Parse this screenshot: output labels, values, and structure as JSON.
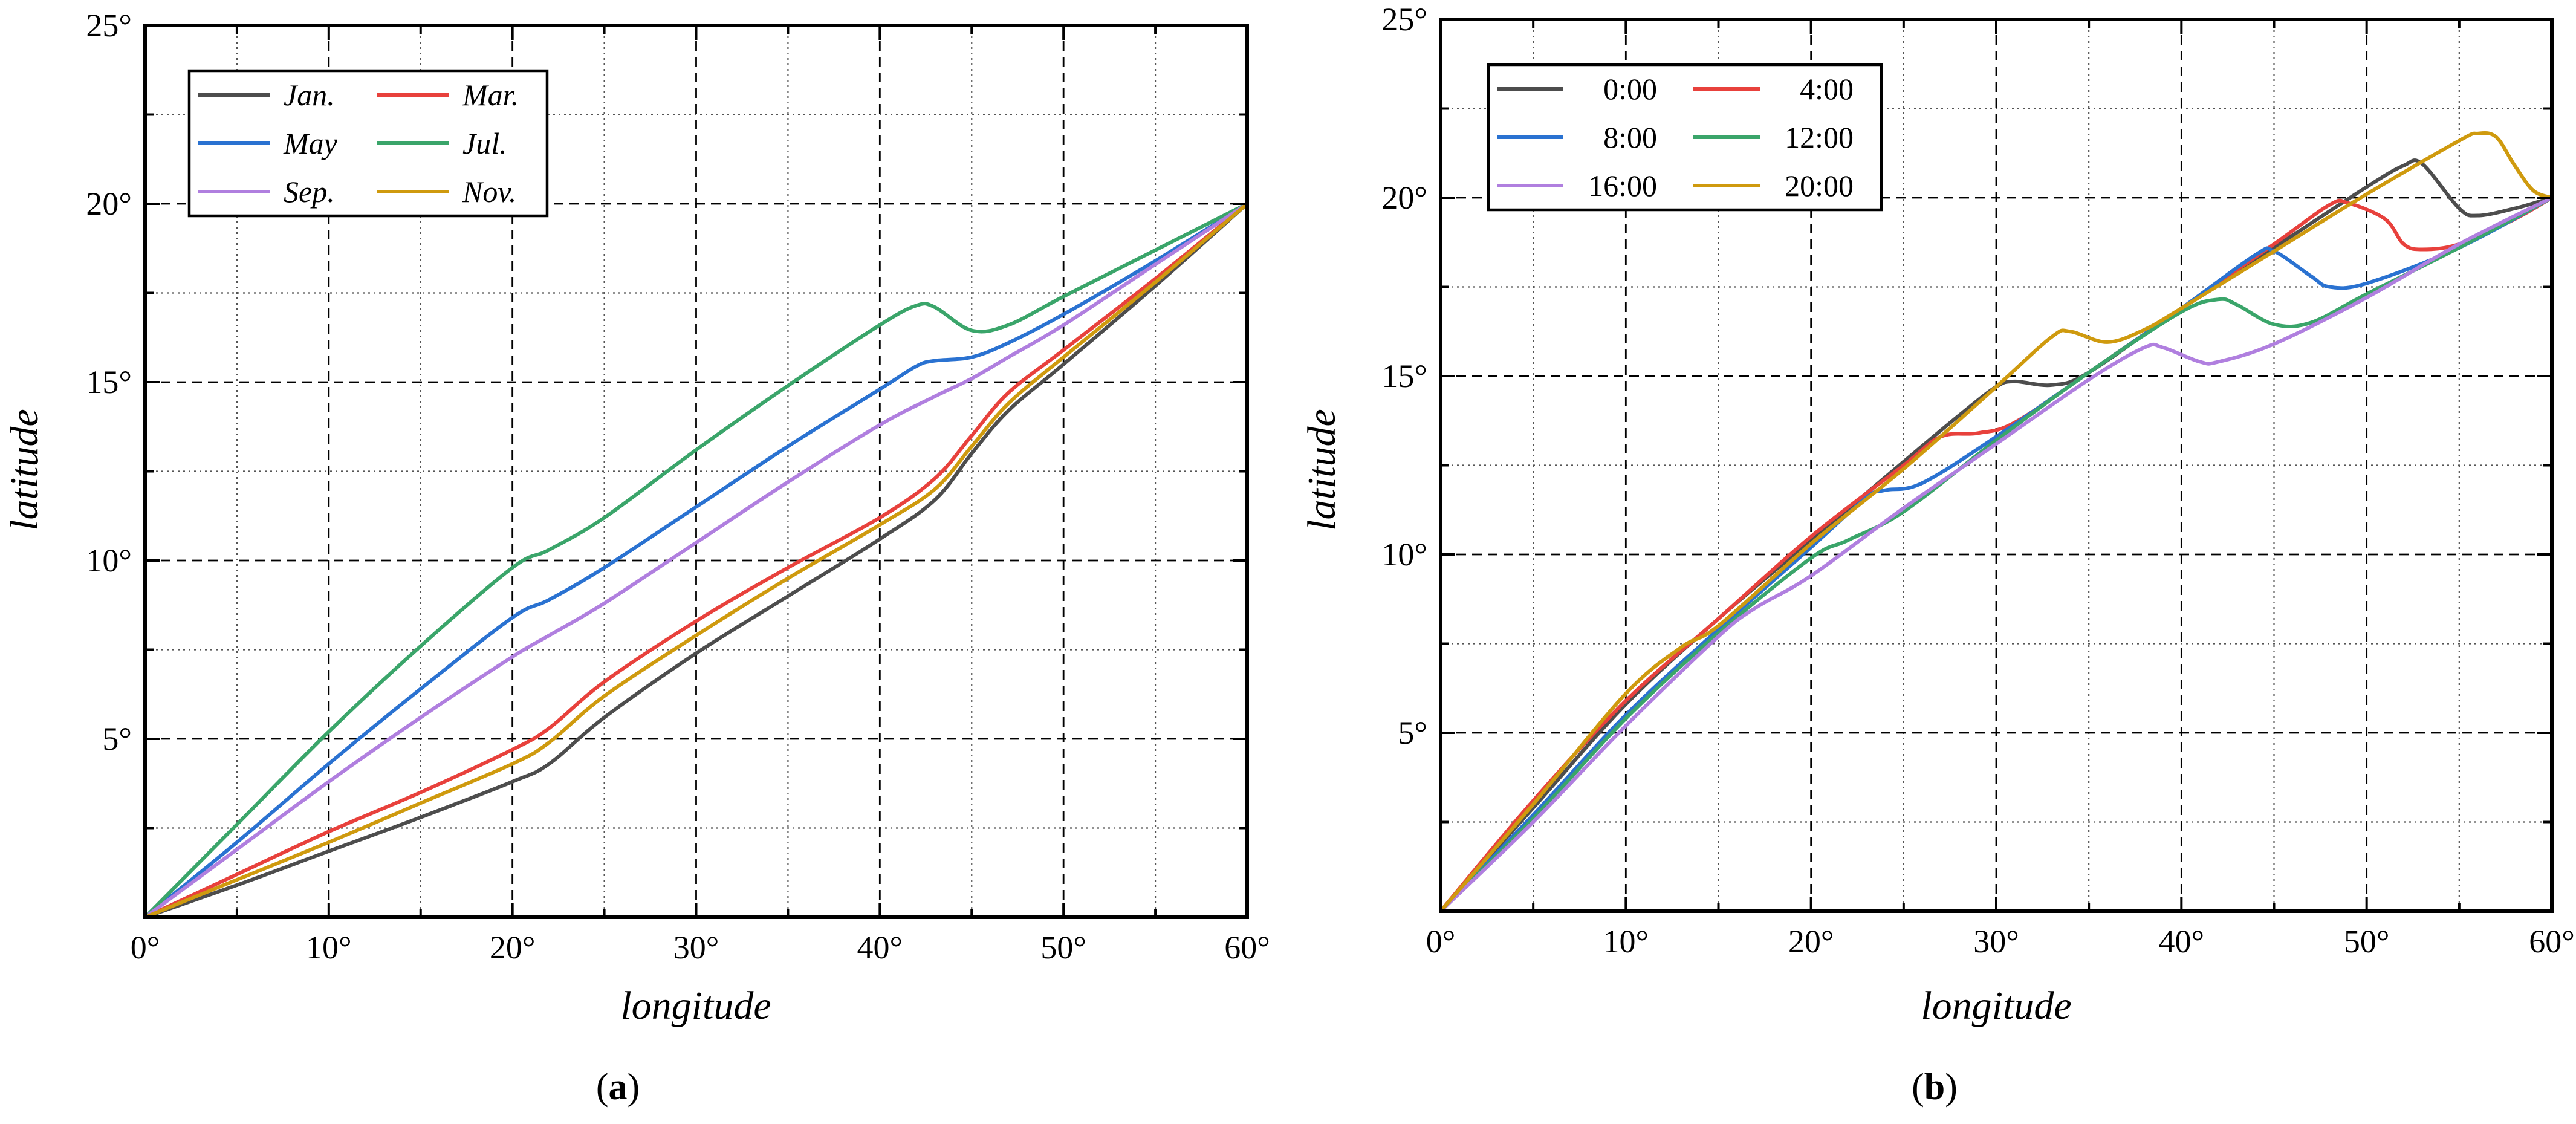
{
  "captions": {
    "a_open": "(",
    "a_letter": "a",
    "a_close": ")",
    "b_open": "(",
    "b_letter": "b",
    "b_close": ")"
  },
  "chart_data": [
    {
      "id": "a",
      "type": "line",
      "xlabel": "longitude",
      "ylabel": "latitude",
      "xlim": [
        0,
        60
      ],
      "ylim": [
        0,
        25
      ],
      "x_major_ticks": [
        0,
        10,
        20,
        30,
        40,
        50,
        60
      ],
      "y_major_ticks": [
        0,
        5,
        10,
        15,
        20,
        25
      ],
      "x_tick_labels": [
        "0°",
        "10°",
        "20°",
        "30°",
        "40°",
        "50°",
        "60°"
      ],
      "y_tick_labels": [
        "",
        "5°",
        "10°",
        "15°",
        "20°",
        "25°"
      ],
      "grid": true,
      "legend_position": "top-left",
      "legend_italic": true,
      "series": [
        {
          "name": "Jan.",
          "color": "#4d4d4d",
          "points": [
            [
              0,
              0
            ],
            [
              5,
              0.9
            ],
            [
              10,
              1.85
            ],
            [
              15,
              2.8
            ],
            [
              20,
              3.8
            ],
            [
              22,
              4.3
            ],
            [
              25,
              5.6
            ],
            [
              30,
              7.4
            ],
            [
              35,
              9.0
            ],
            [
              40,
              10.6
            ],
            [
              43,
              11.7
            ],
            [
              45,
              13.0
            ],
            [
              47,
              14.2
            ],
            [
              50,
              15.5
            ],
            [
              55,
              17.7
            ],
            [
              60,
              20
            ]
          ]
        },
        {
          "name": "Mar.",
          "color": "#e8413c",
          "points": [
            [
              0,
              0
            ],
            [
              5,
              1.2
            ],
            [
              10,
              2.4
            ],
            [
              15,
              3.5
            ],
            [
              20,
              4.7
            ],
            [
              22,
              5.3
            ],
            [
              25,
              6.6
            ],
            [
              30,
              8.3
            ],
            [
              35,
              9.8
            ],
            [
              40,
              11.2
            ],
            [
              43,
              12.3
            ],
            [
              45,
              13.5
            ],
            [
              47,
              14.7
            ],
            [
              50,
              15.9
            ],
            [
              55,
              17.9
            ],
            [
              60,
              20
            ]
          ]
        },
        {
          "name": "May",
          "color": "#2a72d1",
          "points": [
            [
              0,
              0
            ],
            [
              5,
              2.1
            ],
            [
              10,
              4.3
            ],
            [
              15,
              6.4
            ],
            [
              20,
              8.4
            ],
            [
              22,
              8.9
            ],
            [
              25,
              9.8
            ],
            [
              30,
              11.5
            ],
            [
              35,
              13.2
            ],
            [
              40,
              14.8
            ],
            [
              42,
              15.45
            ],
            [
              43,
              15.6
            ],
            [
              45,
              15.7
            ],
            [
              47,
              16.1
            ],
            [
              50,
              16.9
            ],
            [
              55,
              18.4
            ],
            [
              60,
              20
            ]
          ]
        },
        {
          "name": "Jul.",
          "color": "#3aa56a",
          "points": [
            [
              0,
              0
            ],
            [
              5,
              2.6
            ],
            [
              10,
              5.2
            ],
            [
              15,
              7.6
            ],
            [
              20,
              9.8
            ],
            [
              22,
              10.3
            ],
            [
              25,
              11.2
            ],
            [
              30,
              13.1
            ],
            [
              35,
              14.9
            ],
            [
              40,
              16.6
            ],
            [
              42,
              17.15
            ],
            [
              43,
              17.1
            ],
            [
              45,
              16.45
            ],
            [
              47,
              16.6
            ],
            [
              50,
              17.4
            ],
            [
              55,
              18.7
            ],
            [
              60,
              20
            ]
          ]
        },
        {
          "name": "Sep.",
          "color": "#b07fdf",
          "points": [
            [
              0,
              0
            ],
            [
              5,
              1.9
            ],
            [
              10,
              3.8
            ],
            [
              15,
              5.6
            ],
            [
              20,
              7.3
            ],
            [
              22,
              7.9
            ],
            [
              25,
              8.8
            ],
            [
              30,
              10.5
            ],
            [
              35,
              12.2
            ],
            [
              40,
              13.8
            ],
            [
              43,
              14.6
            ],
            [
              45,
              15.1
            ],
            [
              47,
              15.7
            ],
            [
              50,
              16.6
            ],
            [
              55,
              18.3
            ],
            [
              60,
              20
            ]
          ]
        },
        {
          "name": "Nov.",
          "color": "#cf9a0e",
          "points": [
            [
              0,
              0
            ],
            [
              5,
              1.05
            ],
            [
              10,
              2.1
            ],
            [
              15,
              3.2
            ],
            [
              20,
              4.3
            ],
            [
              22,
              4.9
            ],
            [
              25,
              6.2
            ],
            [
              30,
              7.9
            ],
            [
              35,
              9.5
            ],
            [
              40,
              11.0
            ],
            [
              43,
              12.0
            ],
            [
              45,
              13.2
            ],
            [
              47,
              14.4
            ],
            [
              50,
              15.7
            ],
            [
              55,
              17.8
            ],
            [
              60,
              20
            ]
          ]
        }
      ]
    },
    {
      "id": "b",
      "type": "line",
      "xlabel": "longitude",
      "ylabel": "latitude",
      "xlim": [
        0,
        60
      ],
      "ylim": [
        0,
        25
      ],
      "x_major_ticks": [
        0,
        10,
        20,
        30,
        40,
        50,
        60
      ],
      "y_major_ticks": [
        0,
        5,
        10,
        15,
        20,
        25
      ],
      "x_tick_labels": [
        "0°",
        "10°",
        "20°",
        "30°",
        "40°",
        "50°",
        "60°"
      ],
      "y_tick_labels": [
        "",
        "5°",
        "10°",
        "15°",
        "20°",
        "25°"
      ],
      "grid": true,
      "legend_position": "top-left",
      "legend_italic": false,
      "series": [
        {
          "name": "0:00",
          "color": "#4d4d4d",
          "points": [
            [
              0,
              0
            ],
            [
              5,
              2.9
            ],
            [
              10,
              5.8
            ],
            [
              15,
              8.2
            ],
            [
              20,
              10.4
            ],
            [
              25,
              12.6
            ],
            [
              28,
              13.9
            ],
            [
              30,
              14.7
            ],
            [
              31,
              14.85
            ],
            [
              33,
              14.75
            ],
            [
              35,
              15.1
            ],
            [
              40,
              16.9
            ],
            [
              45,
              18.6
            ],
            [
              50,
              20.3
            ],
            [
              52,
              20.9
            ],
            [
              53,
              20.95
            ],
            [
              55,
              19.7
            ],
            [
              56,
              19.5
            ],
            [
              58,
              19.7
            ],
            [
              60,
              20
            ]
          ]
        },
        {
          "name": "4:00",
          "color": "#e8413c",
          "points": [
            [
              0,
              0
            ],
            [
              5,
              3.1
            ],
            [
              10,
              5.9
            ],
            [
              15,
              8.2
            ],
            [
              20,
              10.5
            ],
            [
              25,
              12.5
            ],
            [
              27,
              13.3
            ],
            [
              29,
              13.4
            ],
            [
              31,
              13.7
            ],
            [
              35,
              15.1
            ],
            [
              40,
              16.9
            ],
            [
              45,
              18.7
            ],
            [
              48,
              19.8
            ],
            [
              49,
              19.85
            ],
            [
              51,
              19.4
            ],
            [
              52,
              18.7
            ],
            [
              53,
              18.55
            ],
            [
              55,
              18.7
            ],
            [
              58,
              19.4
            ],
            [
              60,
              20
            ]
          ]
        },
        {
          "name": "8:00",
          "color": "#2a72d1",
          "points": [
            [
              0,
              0
            ],
            [
              5,
              2.7
            ],
            [
              10,
              5.5
            ],
            [
              15,
              7.9
            ],
            [
              20,
              10.2
            ],
            [
              23,
              11.6
            ],
            [
              24,
              11.8
            ],
            [
              26,
              12.0
            ],
            [
              30,
              13.3
            ],
            [
              35,
              15.1
            ],
            [
              40,
              16.9
            ],
            [
              44,
              18.4
            ],
            [
              45,
              18.5
            ],
            [
              47,
              17.8
            ],
            [
              48,
              17.5
            ],
            [
              50,
              17.6
            ],
            [
              55,
              18.6
            ],
            [
              60,
              20
            ]
          ]
        },
        {
          "name": "12:00",
          "color": "#3aa56a",
          "points": [
            [
              0,
              0
            ],
            [
              5,
              2.6
            ],
            [
              10,
              5.4
            ],
            [
              15,
              7.8
            ],
            [
              20,
              9.9
            ],
            [
              22,
              10.4
            ],
            [
              25,
              11.2
            ],
            [
              30,
              13.2
            ],
            [
              35,
              15.1
            ],
            [
              40,
              16.8
            ],
            [
              42,
              17.15
            ],
            [
              43,
              17.0
            ],
            [
              45,
              16.45
            ],
            [
              47,
              16.5
            ],
            [
              50,
              17.3
            ],
            [
              55,
              18.6
            ],
            [
              60,
              20
            ]
          ]
        },
        {
          "name": "16:00",
          "color": "#b07fdf",
          "points": [
            [
              0,
              0
            ],
            [
              5,
              2.5
            ],
            [
              10,
              5.2
            ],
            [
              15,
              7.7
            ],
            [
              17,
              8.5
            ],
            [
              20,
              9.4
            ],
            [
              25,
              11.3
            ],
            [
              30,
              13.1
            ],
            [
              35,
              14.9
            ],
            [
              38,
              15.8
            ],
            [
              39,
              15.8
            ],
            [
              41,
              15.4
            ],
            [
              42,
              15.4
            ],
            [
              45,
              15.9
            ],
            [
              50,
              17.2
            ],
            [
              55,
              18.7
            ],
            [
              60,
              20
            ]
          ]
        },
        {
          "name": "20:00",
          "color": "#cf9a0e",
          "points": [
            [
              0,
              0
            ],
            [
              5,
              3.0
            ],
            [
              10,
              6.1
            ],
            [
              13,
              7.4
            ],
            [
              15,
              8.0
            ],
            [
              20,
              10.3
            ],
            [
              25,
              12.4
            ],
            [
              30,
              14.7
            ],
            [
              33,
              16.1
            ],
            [
              34,
              16.25
            ],
            [
              36,
              15.95
            ],
            [
              38,
              16.3
            ],
            [
              40,
              16.9
            ],
            [
              45,
              18.5
            ],
            [
              50,
              20.1
            ],
            [
              55,
              21.6
            ],
            [
              56,
              21.8
            ],
            [
              57,
              21.7
            ],
            [
              58,
              20.9
            ],
            [
              59,
              20.2
            ],
            [
              60,
              20
            ]
          ]
        }
      ]
    }
  ]
}
